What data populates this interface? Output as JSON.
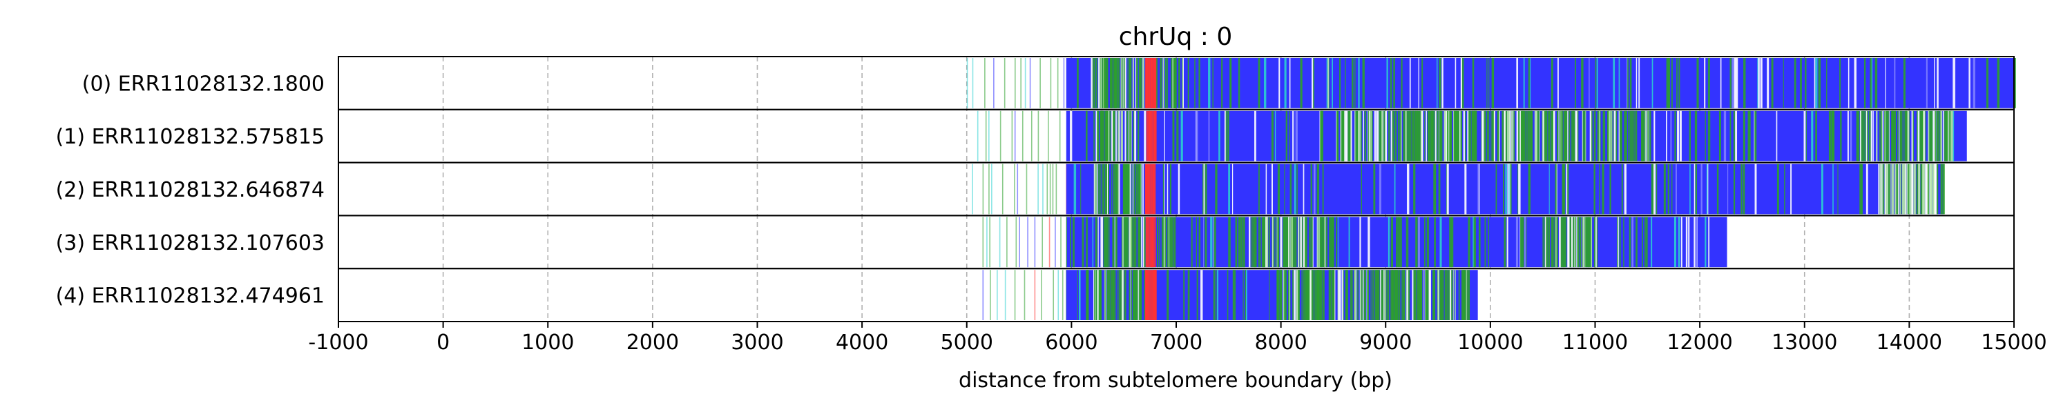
{
  "chart_data": {
    "type": "read-alignment track plot",
    "title": "chrUq : 0",
    "xlabel": "distance from subtelomere boundary (bp)",
    "xlim": [
      -1000,
      15000
    ],
    "xticks": [
      -1000,
      0,
      1000,
      2000,
      3000,
      4000,
      5000,
      6000,
      7000,
      8000,
      9000,
      10000,
      11000,
      12000,
      13000,
      14000,
      15000
    ],
    "grid": "vertical dashed",
    "colors": {
      "blue": "#3333ff",
      "green": "#2ca02c",
      "red": "#ff3333",
      "light_green": "#b5e6a8",
      "cyan": "#2ad0d0"
    },
    "reads": [
      {
        "label": "(0) ERR11028132.1800",
        "scatter_start": 5000,
        "dense_start": 5950,
        "end": 15000,
        "green_zones": [
          [
            6200,
            6700
          ],
          [
            6800,
            7000
          ]
        ],
        "red_zones": [
          [
            6700,
            6800
          ]
        ],
        "light_green_zones": []
      },
      {
        "label": "(1) ERR11028132.575815",
        "scatter_start": 5100,
        "dense_start": 5950,
        "end": 14550,
        "green_zones": [
          [
            6200,
            6600
          ],
          [
            8500,
            11500
          ],
          [
            13500,
            14400
          ]
        ],
        "red_zones": [
          [
            6700,
            6800
          ]
        ],
        "light_green_zones": []
      },
      {
        "label": "(2) ERR11028132.646874",
        "scatter_start": 5050,
        "dense_start": 5950,
        "end": 14330,
        "green_zones": [
          [
            6200,
            6700
          ]
        ],
        "red_zones": [
          [
            6700,
            6800
          ]
        ],
        "light_green_zones": [
          [
            13700,
            14250
          ]
        ]
      },
      {
        "label": "(3) ERR11028132.107603",
        "scatter_start": 5150,
        "dense_start": 5950,
        "end": 12260,
        "green_zones": [
          [
            6200,
            7000
          ],
          [
            7700,
            8500
          ],
          [
            10500,
            11000
          ]
        ],
        "red_zones": [
          [
            6700,
            6800
          ]
        ],
        "light_green_zones": []
      },
      {
        "label": "(4) ERR11028132.474961",
        "scatter_start": 5150,
        "dense_start": 5950,
        "end": 9880,
        "green_zones": [
          [
            6200,
            6700
          ],
          [
            7950,
            9800
          ]
        ],
        "red_zones": [
          [
            6700,
            6800
          ]
        ],
        "light_green_zones": []
      }
    ]
  }
}
